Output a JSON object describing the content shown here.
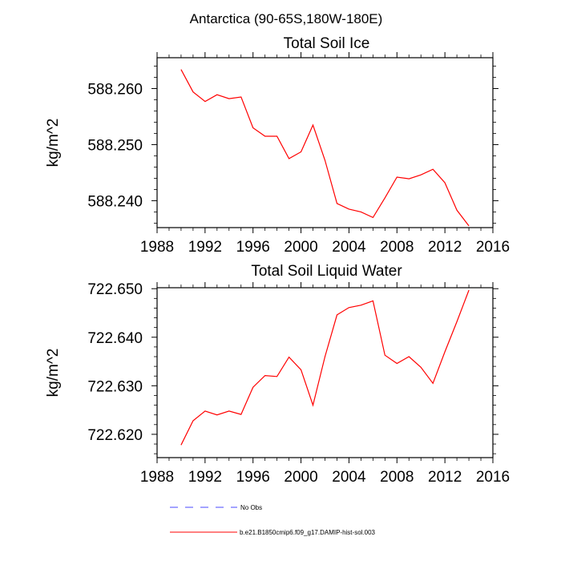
{
  "figure_title": "Antarctica (90-65S,180W-180E)",
  "legend": [
    {
      "label": "No Obs",
      "color": "#4a4aff",
      "style": "dashed"
    },
    {
      "label": "b.e21.B1850cmip6.f09_g17.DAMIP-hist-sol.003",
      "color": "#ff0000",
      "style": "solid"
    }
  ],
  "chart_data": [
    {
      "type": "line",
      "title": "Total Soil Ice",
      "ylabel": "kg/m^2",
      "xlabel": "",
      "xlim": [
        1988,
        2016
      ],
      "ylim": [
        588.2352,
        588.2655
      ],
      "xticks": [
        1988,
        1992,
        1996,
        2000,
        2004,
        2008,
        2012,
        2016
      ],
      "yticks": [
        588.24,
        588.25,
        588.26
      ],
      "ytick_labels": [
        "588.240",
        "588.250",
        "588.260"
      ],
      "series": [
        {
          "color": "#ff0000",
          "x": [
            1990,
            1991,
            1992,
            1993,
            1994,
            1995,
            1996,
            1997,
            1998,
            1999,
            2000,
            2001,
            2002,
            2003,
            2004,
            2005,
            2006,
            2007,
            2008,
            2009,
            2010,
            2011,
            2012,
            2013,
            2014
          ],
          "values": [
            588.2634,
            588.2594,
            588.2577,
            588.2589,
            588.2582,
            588.2585,
            588.253,
            588.2515,
            588.2515,
            588.2475,
            588.2487,
            588.2535,
            588.2472,
            588.2395,
            588.2385,
            588.238,
            588.237,
            588.2405,
            588.2442,
            588.2439,
            588.2446,
            588.2456,
            588.2432,
            588.2383,
            588.2355
          ]
        }
      ]
    },
    {
      "type": "line",
      "title": "Total Soil Liquid Water",
      "ylabel": "kg/m^2",
      "xlabel": "",
      "xlim": [
        1988,
        2016
      ],
      "ylim": [
        722.6152,
        722.6502
      ],
      "xticks": [
        1988,
        1992,
        1996,
        2000,
        2004,
        2008,
        2012,
        2016
      ],
      "yticks": [
        722.62,
        722.63,
        722.64,
        722.65
      ],
      "ytick_labels": [
        "722.620",
        "722.630",
        "722.640",
        "722.650"
      ],
      "series": [
        {
          "color": "#ff0000",
          "x": [
            1990,
            1991,
            1992,
            1993,
            1994,
            1995,
            1996,
            1997,
            1998,
            1999,
            2000,
            2001,
            2002,
            2003,
            2004,
            2005,
            2006,
            2007,
            2008,
            2009,
            2010,
            2011,
            2012,
            2013,
            2014
          ],
          "values": [
            722.6178,
            722.6228,
            722.6248,
            722.624,
            722.6248,
            722.6241,
            722.6297,
            722.6321,
            722.6319,
            722.6359,
            722.6333,
            722.626,
            722.636,
            722.6446,
            722.6461,
            722.6466,
            722.6475,
            722.6363,
            722.6346,
            722.636,
            722.6338,
            722.6305,
            722.637,
            722.6432,
            722.6497
          ]
        }
      ]
    }
  ]
}
